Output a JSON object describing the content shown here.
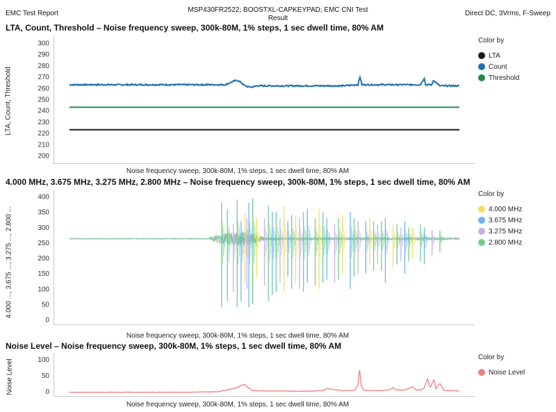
{
  "header": {
    "left": "EMC Test Report",
    "center_line1": "MSP430FR2522; BOOSTXL-CAPKEYPAD; EMC CNI Test",
    "center_line2": "Result",
    "right": "Direct DC, 3Vrms, F-Sweep"
  },
  "chart_data": [
    {
      "type": "line",
      "title": "LTA, Count, Threshold – Noise frequency sweep, 300k-80M, 1% steps, 1 sec dwell time, 80% AM",
      "xlabel": "Noise frequency sweep, 300k-80M, 1% steps, 1 sec dwell time, 80% AM",
      "ylabel": "LTA, Count, Threshold",
      "ylim": [
        200,
        300
      ],
      "yticks": [
        200,
        210,
        220,
        230,
        240,
        250,
        260,
        270,
        280,
        290,
        300
      ],
      "legend_title": "Color by",
      "legend_position": "right",
      "x_domain": [
        0,
        100
      ],
      "series": [
        {
          "name": "LTA",
          "color": "#1a1a1a",
          "x": [
            0,
            100
          ],
          "values": [
            223,
            223
          ]
        },
        {
          "name": "Count",
          "color": "#1f6fae",
          "x": [
            0,
            20,
            40,
            42,
            43,
            44,
            45,
            46,
            47,
            48,
            55,
            70,
            74,
            74.5,
            75,
            90,
            91,
            91.3,
            93,
            93.3,
            95,
            100
          ],
          "values": [
            263,
            263,
            263,
            266,
            267,
            265,
            262,
            261,
            261,
            262,
            262,
            262,
            263,
            270,
            263,
            263,
            269,
            263,
            263,
            267,
            262,
            262
          ]
        },
        {
          "name": "Threshold",
          "color": "#238b45",
          "x": [
            0,
            100
          ],
          "values": [
            243,
            243
          ]
        }
      ]
    },
    {
      "type": "line",
      "title": "4.000 MHz, 3.675 MHz, 3.275 MHz, 2.800 MHz – Noise frequency sweep, 300k-80M, 1% steps, 1 sec dwell time, 80% AM",
      "xlabel": "Noise frequency sweep, 300k-80M, 1% steps, 1 sec dwell time, 80% AM",
      "ylabel": "4.000 ..., 3.675 ..., 3.275 ..., 2.800 ...",
      "ylim": [
        0,
        400
      ],
      "yticks": [
        0,
        50,
        100,
        150,
        200,
        250,
        300,
        350,
        400
      ],
      "legend_title": "Color by",
      "legend_position": "right",
      "x_domain": [
        0,
        100
      ],
      "baseline": 263,
      "series": [
        {
          "name": "4.000 MHz",
          "color": "#f5dd62",
          "spikes": [
            [
              45,
              345,
              120
            ],
            [
              48,
              330,
              140
            ],
            [
              55,
              370,
              90
            ],
            [
              58,
              340,
              120
            ],
            [
              64,
              360,
              100
            ],
            [
              70,
              340,
              150
            ],
            [
              77,
              330,
              180
            ],
            [
              83,
              310,
              170
            ],
            [
              88,
              300,
              200
            ]
          ]
        },
        {
          "name": "3.675 MHz",
          "color": "#6db5e8",
          "spikes": [
            [
              44,
              320,
              60
            ],
            [
              46,
              380,
              40
            ],
            [
              52,
              350,
              80
            ],
            [
              56,
              320,
              140
            ],
            [
              61,
              360,
              120
            ],
            [
              66,
              330,
              130
            ],
            [
              72,
              350,
              100
            ],
            [
              76,
              320,
              150
            ],
            [
              81,
              330,
              120
            ],
            [
              86,
              320,
              150
            ],
            [
              91,
              300,
              180
            ]
          ]
        },
        {
          "name": "3.275 MHz",
          "color": "#c4b1e3",
          "spikes": [
            [
              42,
              310,
              90
            ],
            [
              45.5,
              330,
              100
            ],
            [
              50,
              330,
              110
            ],
            [
              54,
              330,
              120
            ],
            [
              59,
              330,
              100
            ],
            [
              68,
              310,
              120
            ],
            [
              74,
              320,
              150
            ],
            [
              79,
              310,
              180
            ],
            [
              85,
              300,
              190
            ],
            [
              93,
              290,
              210
            ]
          ]
        },
        {
          "name": "2.800 MHz",
          "color": "#6fcf8a",
          "spikes": [
            [
              39,
              380,
              40
            ],
            [
              40.5,
              360,
              60
            ],
            [
              43,
              390,
              40
            ],
            [
              47,
              395,
              50
            ],
            [
              51,
              370,
              60
            ],
            [
              53,
              350,
              90
            ],
            [
              57,
              340,
              100
            ],
            [
              60,
              350,
              90
            ],
            [
              63,
              330,
              110
            ],
            [
              65,
              350,
              120
            ],
            [
              69,
              330,
              130
            ],
            [
              73,
              330,
              140
            ],
            [
              78,
              320,
              160
            ],
            [
              80,
              320,
              160
            ],
            [
              84,
              310,
              180
            ],
            [
              87,
              300,
              190
            ],
            [
              90,
              310,
              190
            ],
            [
              95,
              290,
              220
            ]
          ]
        }
      ]
    },
    {
      "type": "area",
      "title": "Noise Level – Noise frequency sweep, 300k-80M, 1% steps, 1 sec dwell time, 80% AM",
      "xlabel": "Noise frequency sweep, 300k-80M, 1% steps, 1 sec dwell time, 80% AM",
      "ylabel": "Noise Level",
      "ylim": [
        -5,
        110
      ],
      "yticks": [
        0,
        50,
        100
      ],
      "legend_title": "Color by",
      "legend_position": "right",
      "x_domain": [
        0,
        100
      ],
      "series": [
        {
          "name": "Noise Level",
          "color": "#f08080",
          "x": [
            0,
            30,
            38,
            40,
            42,
            43,
            44,
            45,
            46,
            47,
            50,
            55,
            60,
            65,
            66,
            70,
            73,
            74,
            74.4,
            74.8,
            75.5,
            80,
            82,
            83,
            84,
            86,
            88,
            89,
            89.5,
            90,
            91,
            91.8,
            92.5,
            93.5,
            94,
            95,
            96,
            100
          ],
          "values": [
            -2,
            -2,
            0,
            4,
            10,
            12,
            20,
            22,
            10,
            3,
            2,
            2,
            1,
            3,
            10,
            3,
            4,
            20,
            72,
            20,
            4,
            3,
            6,
            12,
            5,
            5,
            15,
            4,
            8,
            4,
            12,
            42,
            12,
            38,
            10,
            26,
            4,
            2
          ]
        }
      ]
    }
  ]
}
